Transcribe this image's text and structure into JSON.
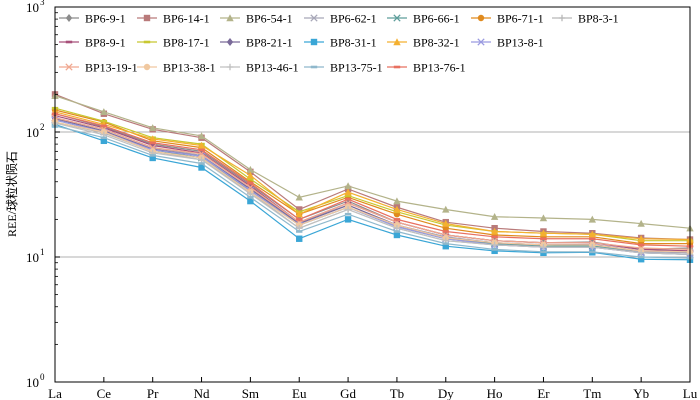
{
  "chart_data": {
    "type": "line",
    "title": "",
    "xlabel": "",
    "ylabel": "REE/球粒状陨石",
    "yscale": "log",
    "ylim": [
      1,
      1000
    ],
    "y_tick_labels": [
      "10",
      "10",
      "10",
      "10"
    ],
    "y_tick_exponents": [
      "0",
      "1",
      "2",
      "3"
    ],
    "gridlines": [
      10,
      100
    ],
    "legend_position": "top-left, inside",
    "categories": [
      "La",
      "Ce",
      "Pr",
      "Nd",
      "Sm",
      "Eu",
      "Gd",
      "Tb",
      "Dy",
      "Ho",
      "Er",
      "Tm",
      "Yb",
      "Lu"
    ],
    "series": [
      {
        "name": "BP6-9-1",
        "color": "#8c8c8c",
        "marker": "diamond",
        "values": [
          140,
          110,
          80,
          70,
          38,
          20,
          28,
          19,
          15,
          13.5,
          13,
          13.2,
          11.5,
          11.8
        ]
      },
      {
        "name": "BP6-14-1",
        "color": "#b97a7a",
        "marker": "square",
        "values": [
          200,
          140,
          105,
          90,
          48,
          24,
          35,
          25,
          19,
          17,
          16,
          15.5,
          14.2,
          13.8
        ]
      },
      {
        "name": "BP6-54-1",
        "color": "#b3b38a",
        "marker": "triangle",
        "values": [
          195,
          145,
          108,
          93,
          50,
          30,
          37,
          28,
          24,
          21,
          20.5,
          20,
          18.5,
          17
        ]
      },
      {
        "name": "BP6-62-1",
        "color": "#a7a7b8",
        "marker": "x",
        "values": [
          130,
          105,
          75,
          65,
          35,
          19,
          26,
          18,
          14.5,
          13,
          12.5,
          12.5,
          11,
          10.8
        ]
      },
      {
        "name": "BP6-66-1",
        "color": "#5e9e9b",
        "marker": "x",
        "values": [
          125,
          100,
          72,
          62,
          34,
          18,
          25,
          17.5,
          14,
          12.8,
          12.2,
          12.3,
          10.8,
          10.5
        ]
      },
      {
        "name": "BP6-71-1",
        "color": "#e08a1e",
        "marker": "circle",
        "values": [
          150,
          120,
          85,
          75,
          40,
          22,
          30,
          22,
          17,
          15,
          14.5,
          14.5,
          12.8,
          12.8
        ]
      },
      {
        "name": "BP8-3-1",
        "color": "#b8b8b8",
        "marker": "plus",
        "values": [
          120,
          98,
          70,
          60,
          33,
          17,
          24,
          17,
          13.5,
          12.5,
          12,
          12,
          10.8,
          10.5
        ]
      },
      {
        "name": "BP8-9-1",
        "color": "#a8507a",
        "marker": "dash",
        "values": [
          135,
          108,
          78,
          68,
          37,
          19,
          27,
          19,
          15,
          13.5,
          13,
          13,
          11.5,
          11.2
        ]
      },
      {
        "name": "BP8-17-1",
        "color": "#c8c830",
        "marker": "dash",
        "values": [
          155,
          122,
          90,
          80,
          42,
          23,
          31,
          23,
          18,
          16,
          15.5,
          15.2,
          13.5,
          13.5
        ]
      },
      {
        "name": "BP8-21-1",
        "color": "#7a6a99",
        "marker": "diamond",
        "values": [
          128,
          102,
          73,
          64,
          35,
          18.5,
          26,
          18,
          14.2,
          13,
          12.5,
          12.6,
          11.2,
          11
        ]
      },
      {
        "name": "BP8-31-1",
        "color": "#3aa6d6",
        "marker": "square",
        "values": [
          115,
          85,
          62,
          52,
          28,
          14,
          20,
          15,
          12.2,
          11.2,
          10.8,
          10.9,
          9.6,
          9.5
        ]
      },
      {
        "name": "BP8-32-1",
        "color": "#f4b030",
        "marker": "triangle",
        "values": [
          145,
          115,
          88,
          78,
          45,
          22,
          33,
          24,
          18.5,
          16,
          15.5,
          15.2,
          14,
          13.8
        ]
      },
      {
        "name": "BP13-8-1",
        "color": "#9a9ae0",
        "marker": "x",
        "values": [
          125,
          100,
          72,
          64,
          34,
          18,
          25,
          17.5,
          14,
          12.5,
          12,
          12,
          10.8,
          10.5
        ]
      },
      {
        "name": "BP13-19-1",
        "color": "#f0a890",
        "marker": "x",
        "values": [
          130,
          105,
          75,
          67,
          36,
          19,
          27,
          19,
          15,
          13.5,
          13,
          13,
          11.8,
          11.5
        ]
      },
      {
        "name": "BP13-38-1",
        "color": "#f0c8a0",
        "marker": "circle",
        "values": [
          120,
          100,
          70,
          62,
          33,
          18,
          25,
          18,
          14.2,
          13,
          12.5,
          12.5,
          11.2,
          11
        ]
      },
      {
        "name": "BP13-46-1",
        "color": "#c0c0c0",
        "marker": "plus",
        "values": [
          118,
          95,
          68,
          60,
          32,
          17,
          24,
          17,
          13.5,
          12.5,
          12,
          12,
          10.8,
          10.5
        ]
      },
      {
        "name": "BP13-75-1",
        "color": "#8fb8cc",
        "marker": "dash",
        "values": [
          112,
          90,
          65,
          56,
          30,
          16,
          22,
          16,
          12.8,
          11.5,
          11,
          11,
          10,
          9.8
        ]
      },
      {
        "name": "BP13-76-1",
        "color": "#e87060",
        "marker": "dash",
        "values": [
          140,
          112,
          82,
          72,
          39,
          20,
          29,
          20,
          16,
          14.5,
          14,
          14,
          12.5,
          12.2
        ]
      }
    ]
  }
}
